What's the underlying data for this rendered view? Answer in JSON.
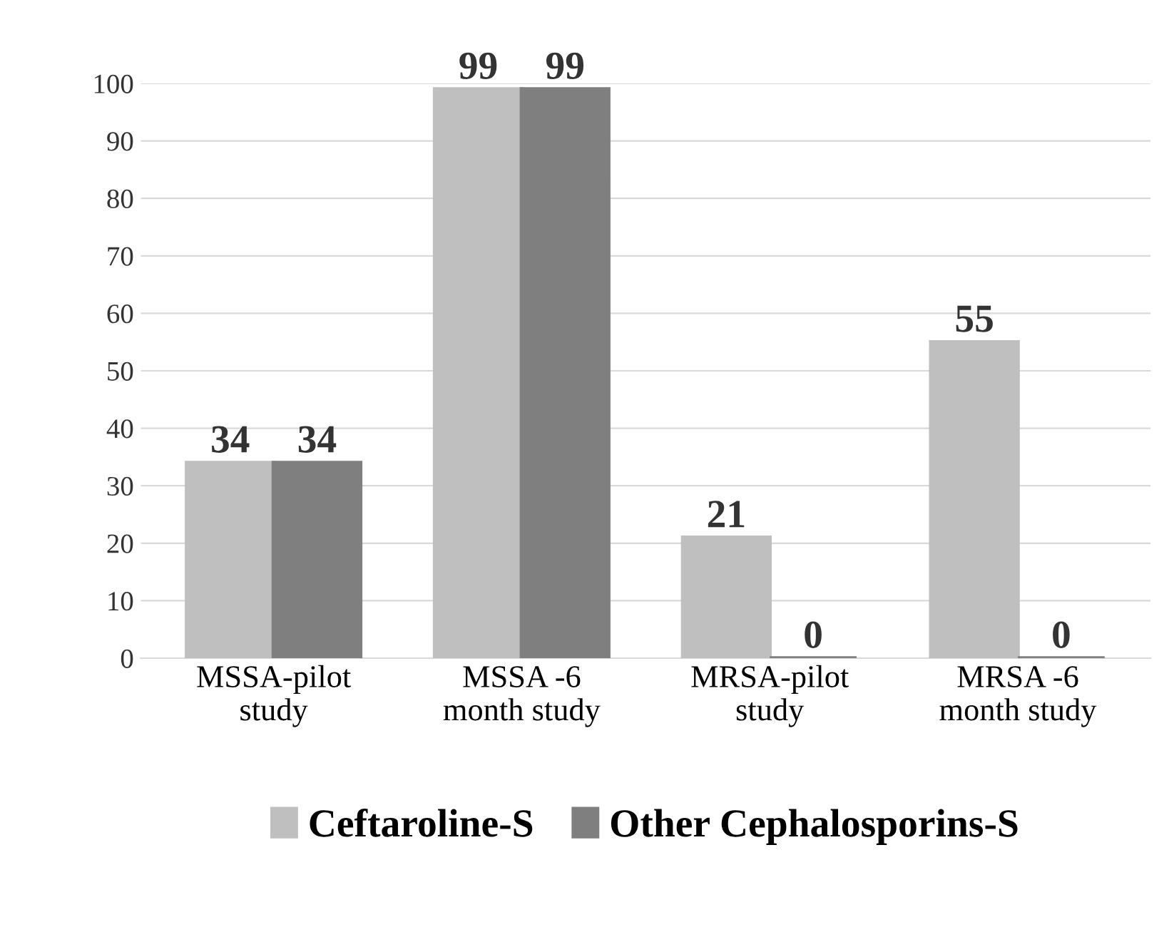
{
  "chart_data": {
    "type": "bar",
    "categories": [
      "MSSA-pilot\nstudy",
      "MSSA -6\nmonth study",
      "MRSA-pilot\nstudy",
      "MRSA -6\nmonth study"
    ],
    "series": [
      {
        "name": "Ceftaroline-S",
        "color": "#bfbfbf",
        "values": [
          34,
          99,
          21,
          55
        ]
      },
      {
        "name": "Other Cephalosporins-S",
        "color": "#7f7f7f",
        "values": [
          34,
          99,
          0,
          0
        ]
      }
    ],
    "ylim": [
      0,
      100
    ],
    "yticks": [
      0,
      10,
      20,
      30,
      40,
      50,
      60,
      70,
      80,
      90,
      100
    ],
    "grid": "y",
    "legend": "bottom",
    "data_labels": true
  }
}
